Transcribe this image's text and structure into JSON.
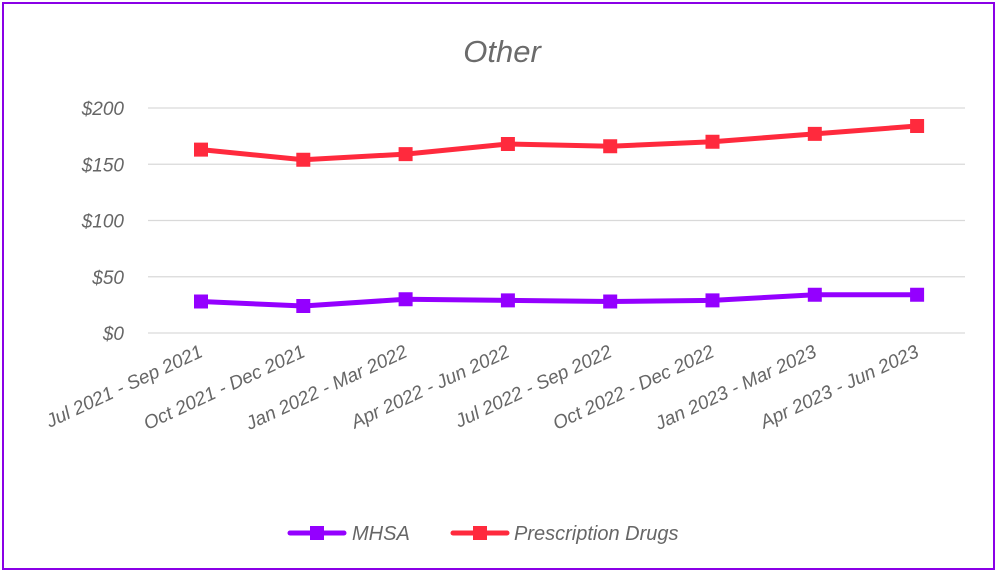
{
  "chart_data": {
    "type": "line",
    "title": "Other",
    "xlabel": "",
    "ylabel": "",
    "categories": [
      "Jul 2021 - Sep 2021",
      "Oct 2021 - Dec 2021",
      "Jan 2022 - Mar 2022",
      "Apr 2022 - Jun 2022",
      "Jul 2022 - Sep 2022",
      "Oct 2022 - Dec 2022",
      "Jan 2023 - Mar 2023",
      "Apr 2023 - Jun 2023"
    ],
    "y_ticks": [
      "$0",
      "$50",
      "$100",
      "$150",
      "$200"
    ],
    "ylim": [
      0,
      200
    ],
    "grid": true,
    "legend_position": "bottom",
    "series": [
      {
        "name": "MHSA",
        "color": "#9400FF",
        "values": [
          28,
          24,
          30,
          29,
          28,
          29,
          34,
          34
        ]
      },
      {
        "name": "Prescription Drugs",
        "color": "#FF2A3D",
        "values": [
          163,
          154,
          159,
          168,
          166,
          170,
          177,
          184
        ]
      }
    ],
    "frame_color": "#8A00E6"
  }
}
